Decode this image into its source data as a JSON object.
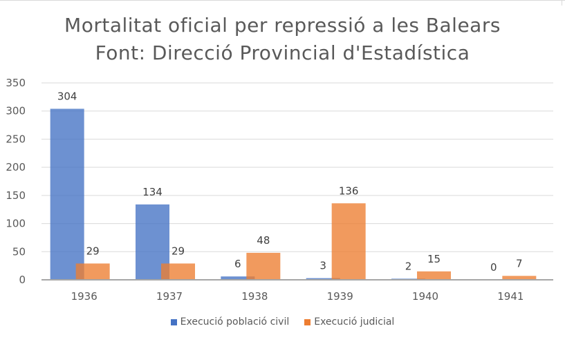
{
  "chart_data": {
    "type": "bar",
    "title": "Mortalitat oficial per repressió a les Balears",
    "subtitle": "Font: Direcció Provincial d'Estadística",
    "categories": [
      "1936",
      "1937",
      "1938",
      "1939",
      "1940",
      "1941"
    ],
    "series": [
      {
        "name": "Execució població civil",
        "color": "#4472c4",
        "values": [
          304,
          134,
          6,
          3,
          2,
          0
        ]
      },
      {
        "name": "Execució judicial",
        "color": "#ed7d31",
        "values": [
          29,
          29,
          48,
          136,
          15,
          7
        ]
      }
    ],
    "ylim": [
      0,
      350
    ],
    "yticks": [
      0,
      50,
      100,
      150,
      200,
      250,
      300,
      350
    ],
    "xlabel": "",
    "ylabel": "",
    "grid": true,
    "legend": "bottom"
  }
}
